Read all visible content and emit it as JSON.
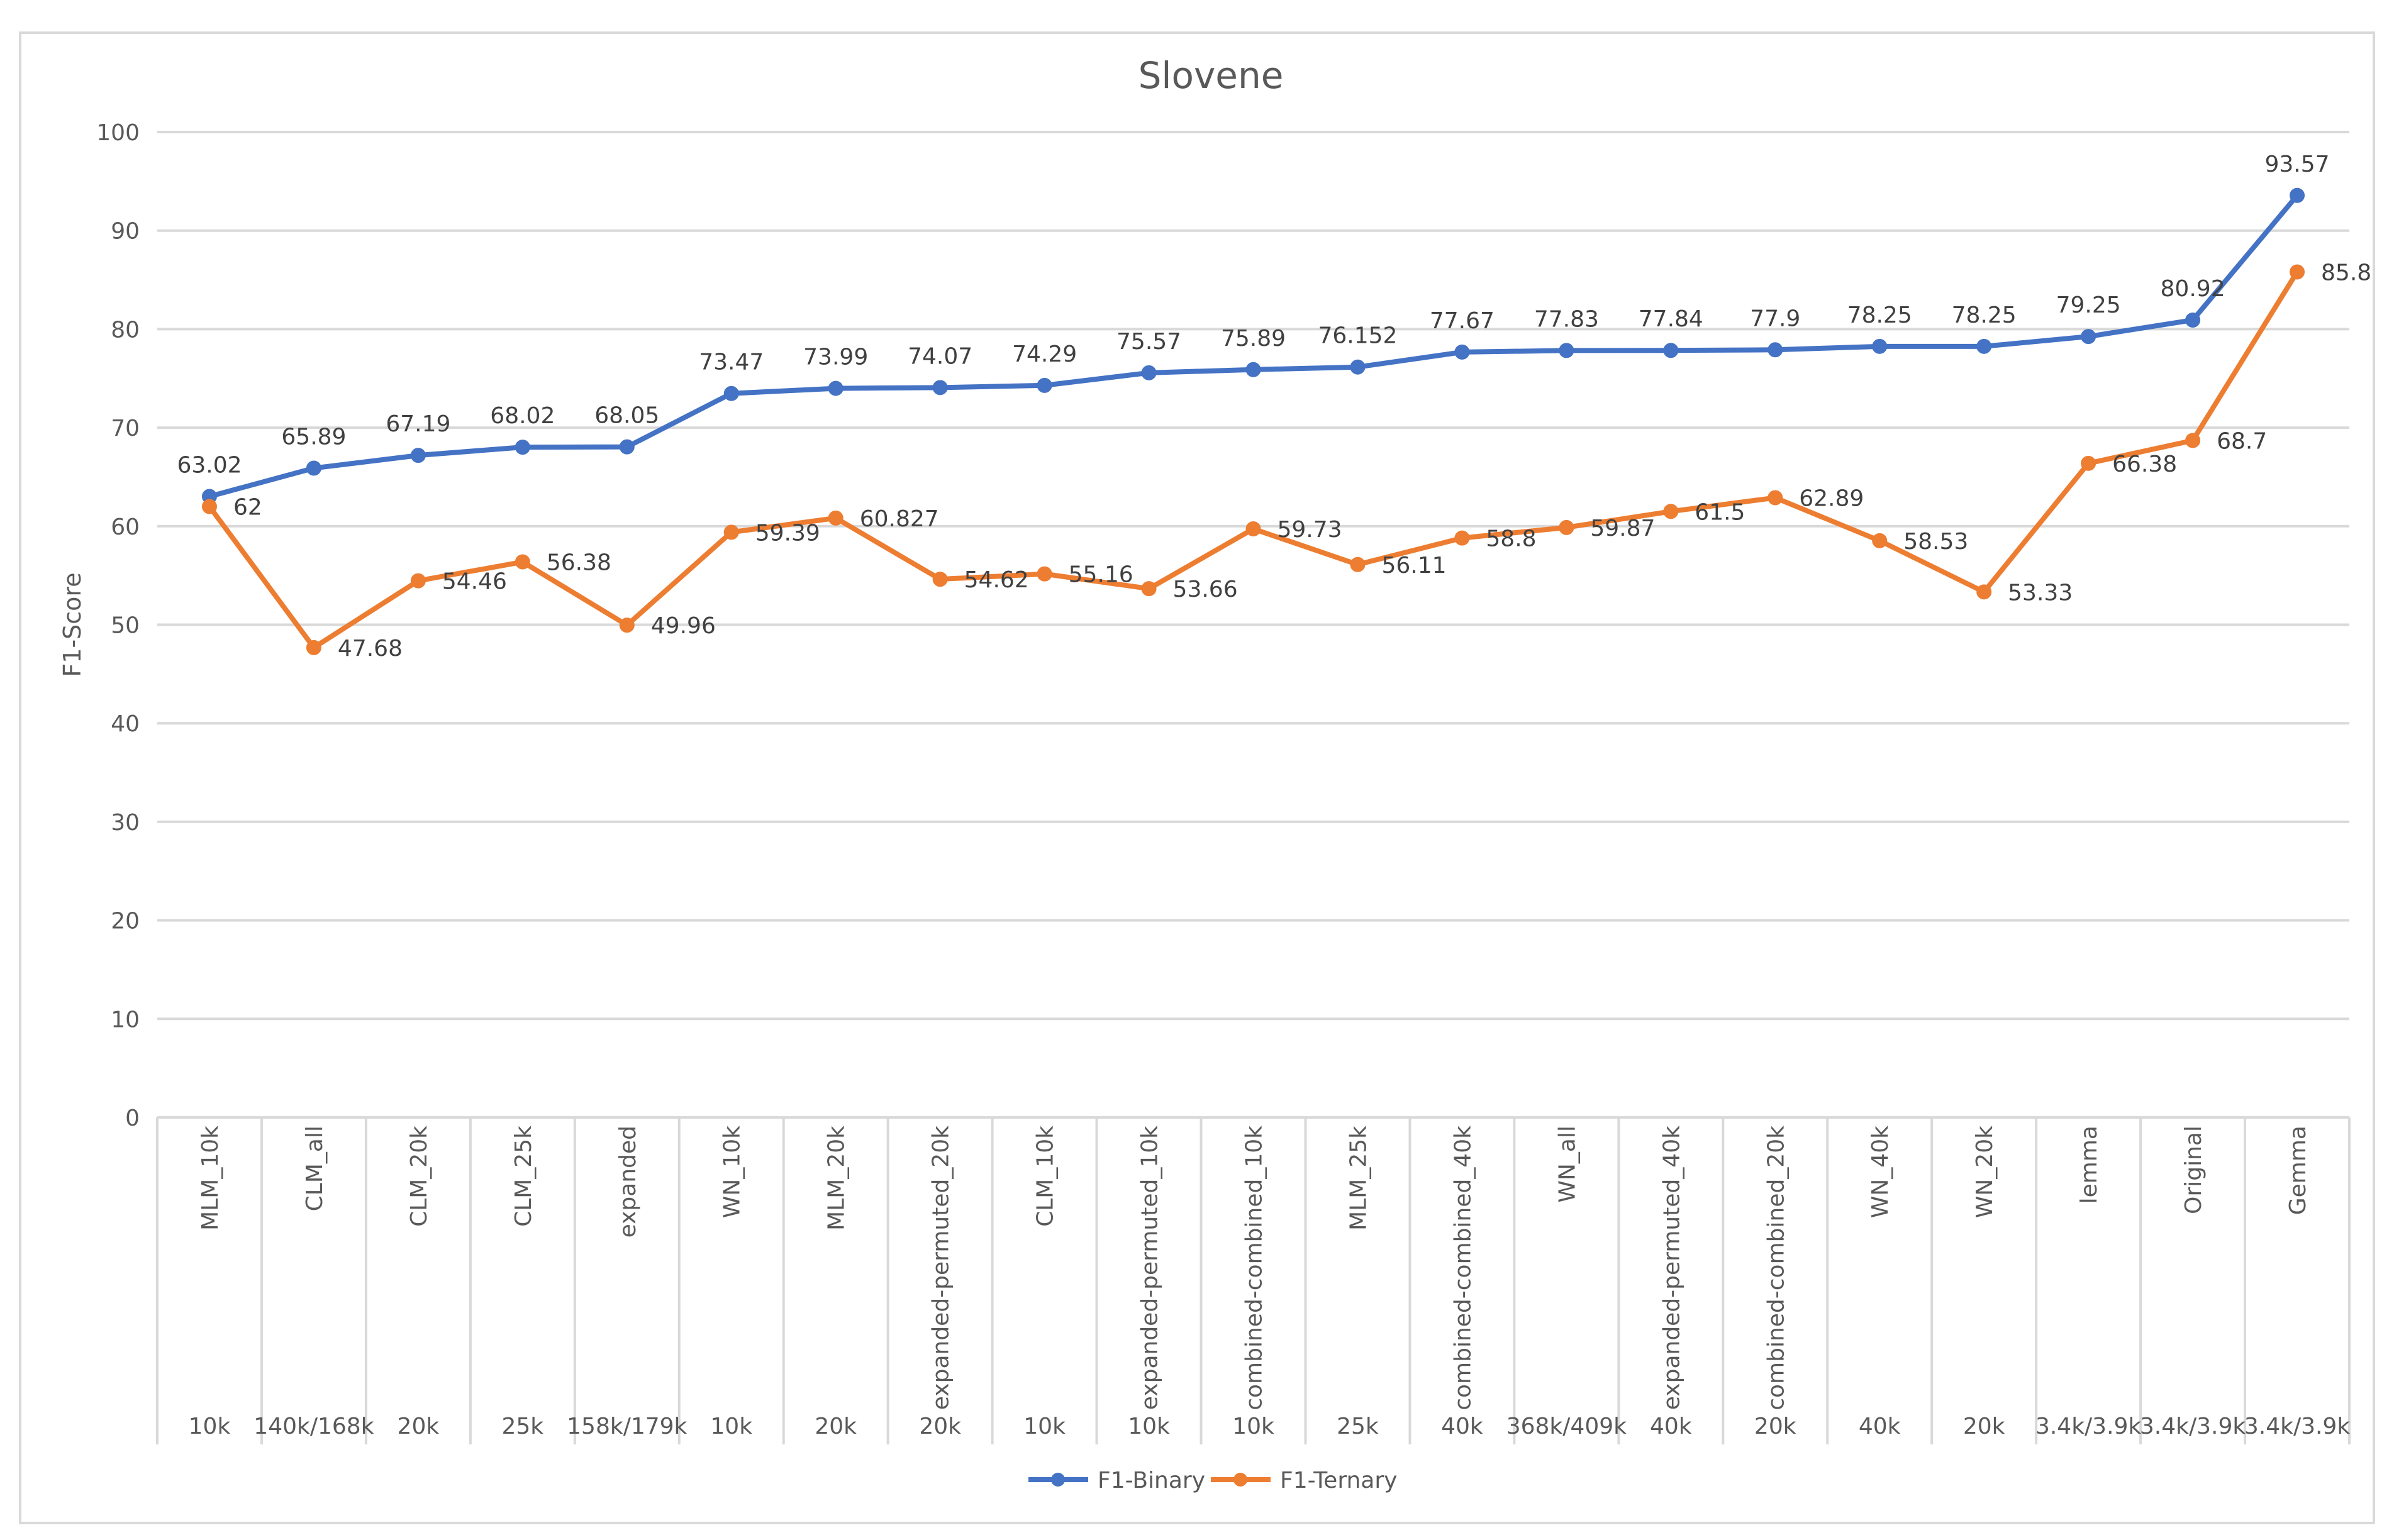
{
  "chart_data": {
    "type": "line",
    "title": "Slovene",
    "xlabel": "",
    "ylabel": "F1-Score",
    "ylim": [
      0,
      100
    ],
    "yticks": [
      0,
      10,
      20,
      30,
      40,
      50,
      60,
      70,
      80,
      90,
      100
    ],
    "grid": true,
    "legend_position": "bottom",
    "categories": [
      "MLM_10k",
      "CLM_all",
      "CLM_20k",
      "CLM_25k",
      "expanded",
      "WN_10k",
      "MLM_20k",
      "expanded-permuted_20k",
      "CLM_10k",
      "expanded-permuted_10k",
      "combined-combined_10k",
      "MLM_25k",
      "combined-combined_40k",
      "WN_all",
      "expanded-permuted_40k",
      "combined-combined_20k",
      "WN_40k",
      "WN_20k",
      "lemma",
      "Original",
      "Gemma"
    ],
    "category_sizes": [
      "10k",
      "140k/168k",
      "20k",
      "25k",
      "158k/179k",
      "10k",
      "20k",
      "20k",
      "10k",
      "10k",
      "10k",
      "25k",
      "40k",
      "368k/409k",
      "40k",
      "20k",
      "40k",
      "20k",
      "3.4k/3.9k",
      "3.4k/3.9k",
      "3.4k/3.9k"
    ],
    "series": [
      {
        "name": "F1-Binary",
        "color": "#4472c4",
        "values": [
          63.02,
          65.89,
          67.19,
          68.02,
          68.05,
          73.47,
          73.99,
          74.07,
          74.29,
          75.57,
          75.89,
          76.152,
          77.67,
          77.83,
          77.84,
          77.9,
          78.25,
          78.25,
          79.25,
          80.92,
          93.57
        ],
        "labels": [
          "63.02",
          "65.89",
          "67.19",
          "68.02",
          "68.05",
          "73.47",
          "73.99",
          "74.07",
          "74.29",
          "75.57",
          "75.89",
          "76.152",
          "77.67",
          "77.83",
          "77.84",
          "77.9",
          "78.25",
          "78.25",
          "79.25",
          "80.92",
          "93.57"
        ]
      },
      {
        "name": "F1-Ternary",
        "color": "#ed7d31",
        "values": [
          62,
          47.68,
          54.46,
          56.38,
          49.96,
          59.39,
          60.827,
          54.62,
          55.16,
          53.66,
          59.73,
          56.11,
          58.8,
          59.87,
          61.5,
          62.89,
          58.53,
          53.33,
          66.38,
          68.7,
          85.8
        ],
        "labels": [
          "62",
          "47.68",
          "54.46",
          "56.38",
          "49.96",
          "59.39",
          "60.827",
          "54.62",
          "55.16",
          "53.66",
          "59.73",
          "56.11",
          "58.8",
          "59.87",
          "61.5",
          "62.89",
          "58.53",
          "53.33",
          "66.38",
          "68.7",
          "85.8"
        ]
      }
    ]
  }
}
